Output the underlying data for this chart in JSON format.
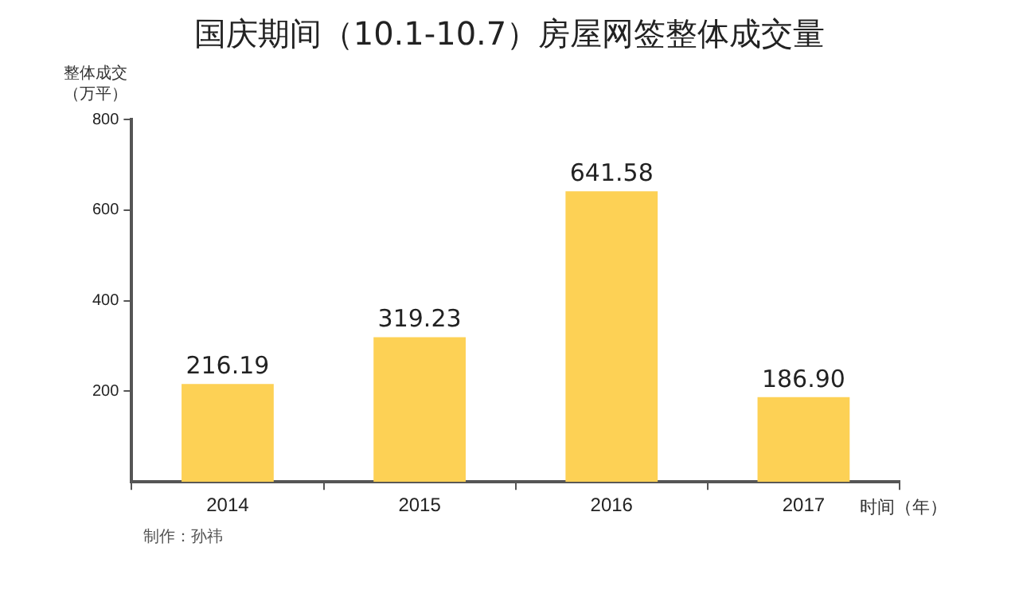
{
  "chart_data": {
    "type": "bar",
    "title": "国庆期间（10.1-10.7）房屋网签整体成交量",
    "ylabel": "整体成交（万平）",
    "xlabel": "时间（年）",
    "categories": [
      "2014",
      "2015",
      "2016",
      "2017"
    ],
    "values": [
      216.19,
      319.23,
      641.58,
      186.9
    ],
    "value_labels": [
      "216.19",
      "319.23",
      "641.58",
      "186.90"
    ],
    "color": "#fdd155",
    "ylim": [
      0,
      800
    ],
    "yticks": [
      200,
      400,
      600,
      800
    ],
    "grid": false,
    "legend": false,
    "annotations": [
      "制作：孙祎"
    ]
  }
}
